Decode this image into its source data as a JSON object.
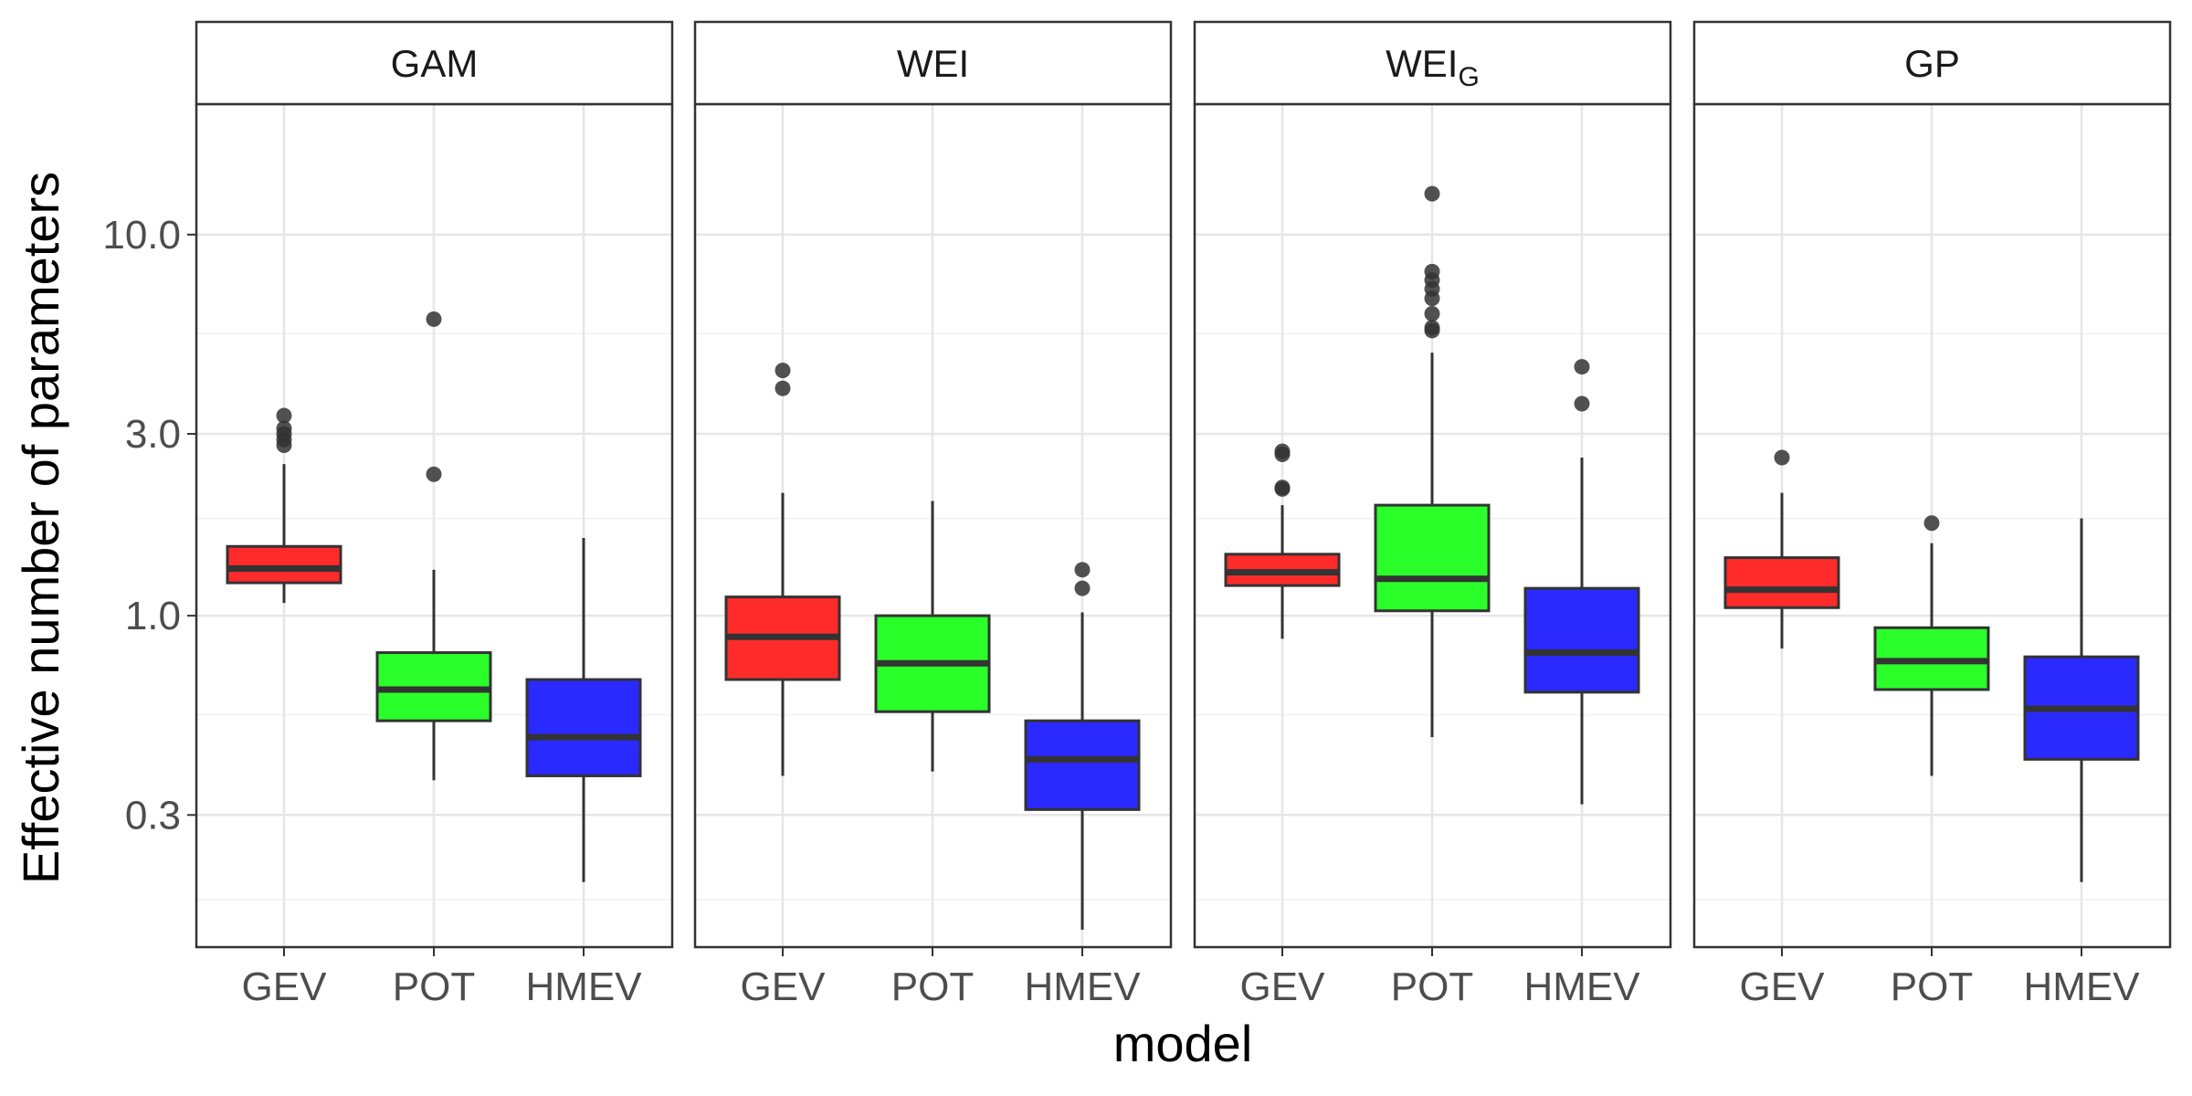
{
  "chart_data": {
    "type": "boxplot",
    "xlabel": "model",
    "ylabel": "Effective number of parameters",
    "y_scale": "log10",
    "ylim": [
      0.135,
      22
    ],
    "y_major_ticks": [
      0.3,
      1.0,
      3.0,
      10.0
    ],
    "y_tick_labels": [
      "0.3",
      "1.0",
      "3.0",
      "10.0"
    ],
    "y_minor_ticks": [
      0.18,
      0.55,
      1.8,
      5.5
    ],
    "categories": [
      "GEV",
      "POT",
      "HMEV"
    ],
    "colors": {
      "GEV": "#ff2a2a",
      "POT": "#2aff2a",
      "HMEV": "#2a2aff"
    },
    "facets": [
      {
        "label": "GAM",
        "label_sub": "",
        "boxes": [
          {
            "model": "GEV",
            "whisker_low": 1.08,
            "q1": 1.22,
            "median": 1.33,
            "q3": 1.52,
            "whisker_high": 2.5,
            "outliers": [
              2.8,
              2.9,
              3.0,
              3.1,
              3.35
            ]
          },
          {
            "model": "POT",
            "whisker_low": 0.37,
            "q1": 0.53,
            "median": 0.64,
            "q3": 0.8,
            "whisker_high": 1.32,
            "outliers": [
              2.35,
              6.0
            ]
          },
          {
            "model": "HMEV",
            "whisker_low": 0.2,
            "q1": 0.38,
            "median": 0.48,
            "q3": 0.68,
            "whisker_high": 1.6,
            "outliers": []
          }
        ]
      },
      {
        "label": "WEI",
        "label_sub": "",
        "boxes": [
          {
            "model": "GEV",
            "whisker_low": 0.38,
            "q1": 0.68,
            "median": 0.88,
            "q3": 1.12,
            "whisker_high": 2.1,
            "outliers": [
              3.95,
              4.4
            ]
          },
          {
            "model": "POT",
            "whisker_low": 0.39,
            "q1": 0.56,
            "median": 0.75,
            "q3": 1.0,
            "whisker_high": 2.0,
            "outliers": []
          },
          {
            "model": "HMEV",
            "whisker_low": 0.15,
            "q1": 0.31,
            "median": 0.42,
            "q3": 0.53,
            "whisker_high": 1.02,
            "outliers": [
              1.18,
              1.32
            ]
          }
        ]
      },
      {
        "label": "WEI",
        "label_sub": "G",
        "boxes": [
          {
            "model": "GEV",
            "whisker_low": 0.87,
            "q1": 1.2,
            "median": 1.3,
            "q3": 1.45,
            "whisker_high": 1.95,
            "outliers": [
              2.15,
              2.17,
              2.65,
              2.7
            ]
          },
          {
            "model": "POT",
            "whisker_low": 0.48,
            "q1": 1.03,
            "median": 1.25,
            "q3": 1.95,
            "whisker_high": 4.9,
            "outliers": [
              5.6,
              5.7,
              6.2,
              6.8,
              7.2,
              7.6,
              8.0,
              12.8
            ]
          },
          {
            "model": "HMEV",
            "whisker_low": 0.32,
            "q1": 0.63,
            "median": 0.8,
            "q3": 1.18,
            "whisker_high": 2.6,
            "outliers": [
              3.6,
              4.5
            ]
          }
        ]
      },
      {
        "label": "GP",
        "label_sub": "",
        "boxes": [
          {
            "model": "GEV",
            "whisker_low": 0.82,
            "q1": 1.05,
            "median": 1.17,
            "q3": 1.42,
            "whisker_high": 2.1,
            "outliers": [
              2.6
            ]
          },
          {
            "model": "POT",
            "whisker_low": 0.38,
            "q1": 0.64,
            "median": 0.76,
            "q3": 0.93,
            "whisker_high": 1.55,
            "outliers": [
              1.75
            ]
          },
          {
            "model": "HMEV",
            "whisker_low": 0.2,
            "q1": 0.42,
            "median": 0.57,
            "q3": 0.78,
            "whisker_high": 1.8,
            "outliers": []
          }
        ]
      }
    ]
  }
}
